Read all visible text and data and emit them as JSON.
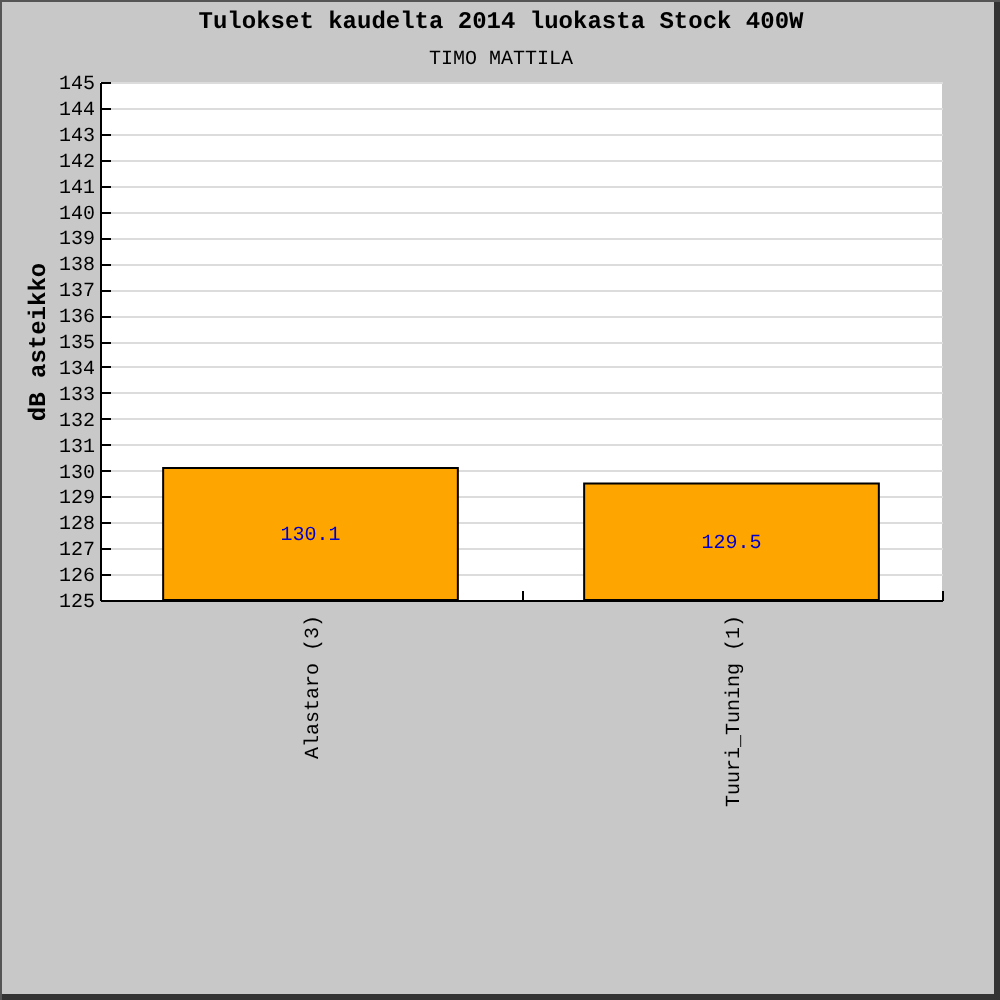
{
  "chart_data": {
    "type": "bar",
    "title": "Tulokset kaudelta 2014 luokasta Stock 400W",
    "subtitle": "TIMO MATTILA",
    "ylabel": "dB asteikko",
    "categories": [
      "Alastaro (3)",
      "Tuuri_Tuning (1)"
    ],
    "values": [
      130.1,
      129.5
    ],
    "color": "#ffa500",
    "ylim": [
      125,
      145
    ],
    "yticks": [
      125,
      126,
      127,
      128,
      129,
      130,
      131,
      132,
      133,
      134,
      135,
      136,
      137,
      138,
      139,
      140,
      141,
      142,
      143,
      144,
      145
    ],
    "grid": "y",
    "data_labels": true
  }
}
